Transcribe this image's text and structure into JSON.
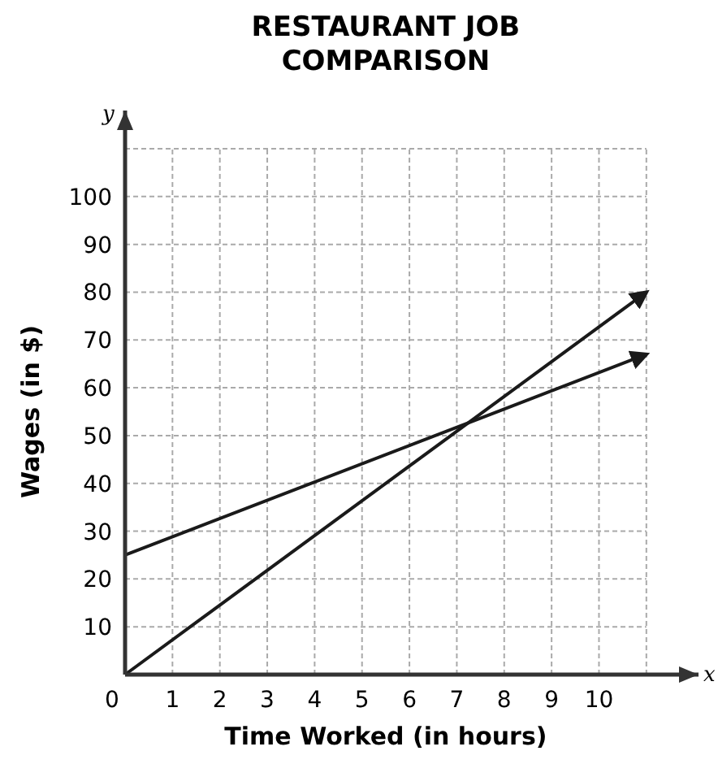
{
  "chart_data": {
    "type": "line",
    "title": "RESTAURANT JOB COMPARISON",
    "xlabel": "Time Worked (in hours)",
    "ylabel": "Wages (in $)",
    "annotations": [
      "x",
      "y"
    ],
    "x": [
      0,
      11
    ],
    "series": [
      {
        "color": "#1a1a1a",
        "values": [
          0,
          80
        ]
      },
      {
        "color": "#1a1a1a",
        "values": [
          25,
          67
        ]
      }
    ],
    "xlim": [
      0,
      12.1
    ],
    "ylim": [
      0,
      118
    ],
    "xticks": [
      0,
      1,
      2,
      3,
      4,
      5,
      6,
      7,
      8,
      9,
      10,
      {
        "value": 11,
        "label": null
      }
    ],
    "yticks": [
      10,
      20,
      30,
      40,
      50,
      60,
      70,
      80,
      90,
      100,
      {
        "value": 110,
        "label": null
      }
    ],
    "grid": true,
    "marker": "none",
    "line_style": "solid"
  }
}
